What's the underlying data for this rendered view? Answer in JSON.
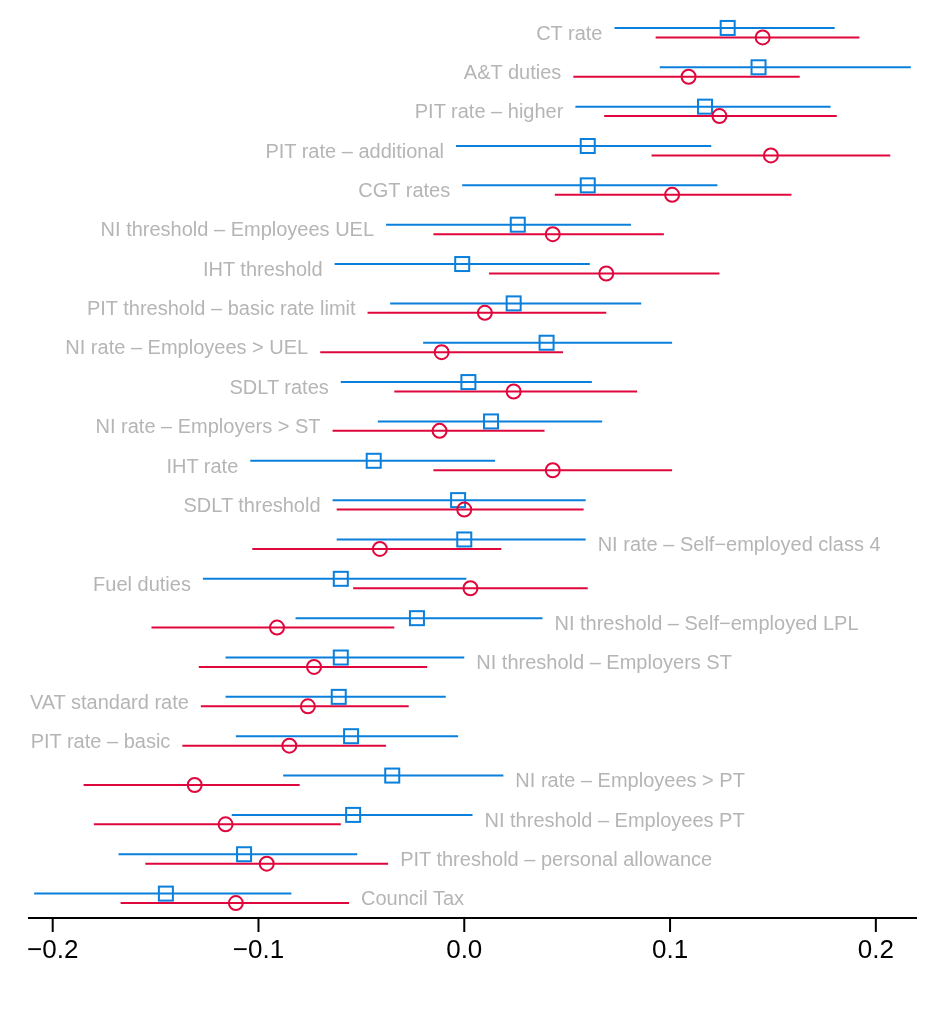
{
  "chart_data": {
    "type": "scatter",
    "orientation": "horizontal",
    "categories": [
      "CT rate",
      "A&T duties",
      "PIT rate – higher",
      "PIT rate – additional",
      "CGT rates",
      "NI threshold – Employees UEL",
      "IHT threshold",
      "PIT threshold – basic rate limit",
      "NI rate – Employees > UEL",
      "SDLT rates",
      "NI rate – Employers > ST",
      "IHT rate",
      "SDLT threshold",
      "NI rate – Self−employed class 4",
      "Fuel duties",
      "NI threshold – Self−employed LPL",
      "NI threshold – Employers ST",
      "VAT standard rate",
      "PIT rate – basic",
      "NI rate – Employees > PT",
      "NI threshold – Employees PT",
      "PIT threshold – personal allowance",
      "Council Tax"
    ],
    "series": [
      {
        "color": "#0a7fdb",
        "marker": "square",
        "values": [
          0.128,
          0.143,
          0.117,
          0.06,
          0.06,
          0.026,
          -0.001,
          0.024,
          0.04,
          0.002,
          0.013,
          -0.044,
          -0.003,
          0.0,
          -0.06,
          -0.023,
          -0.06,
          -0.061,
          -0.055,
          -0.035,
          -0.054,
          -0.107,
          -0.145
        ],
        "errors": [
          [
            0.073,
            0.18
          ],
          [
            0.095,
            0.217
          ],
          [
            0.054,
            0.178
          ],
          [
            -0.004,
            0.12
          ],
          [
            -0.001,
            0.123
          ],
          [
            -0.038,
            0.081
          ],
          [
            -0.063,
            0.061
          ],
          [
            -0.036,
            0.086
          ],
          [
            -0.02,
            0.101
          ],
          [
            -0.06,
            0.062
          ],
          [
            -0.042,
            0.067
          ],
          [
            -0.104,
            0.015
          ],
          [
            -0.064,
            0.059
          ],
          [
            -0.062,
            0.059
          ],
          [
            -0.127,
            0.001
          ],
          [
            -0.082,
            0.038
          ],
          [
            -0.116,
            0.0
          ],
          [
            -0.116,
            -0.009
          ],
          [
            -0.111,
            -0.003
          ],
          [
            -0.088,
            0.019
          ],
          [
            -0.113,
            0.004
          ],
          [
            -0.168,
            -0.052
          ],
          [
            -0.209,
            -0.084
          ]
        ]
      },
      {
        "color": "#e0073c",
        "marker": "circle",
        "values": [
          0.145,
          0.109,
          0.124,
          0.149,
          0.101,
          0.043,
          0.069,
          0.01,
          -0.011,
          0.024,
          -0.012,
          0.043,
          0.0,
          -0.041,
          0.003,
          -0.091,
          -0.073,
          -0.076,
          -0.085,
          -0.131,
          -0.116,
          -0.096,
          -0.111
        ],
        "errors": [
          [
            0.093,
            0.192
          ],
          [
            0.053,
            0.163
          ],
          [
            0.068,
            0.181
          ],
          [
            0.091,
            0.207
          ],
          [
            0.044,
            0.159
          ],
          [
            -0.015,
            0.097
          ],
          [
            0.012,
            0.124
          ],
          [
            -0.047,
            0.069
          ],
          [
            -0.07,
            0.048
          ],
          [
            -0.034,
            0.084
          ],
          [
            -0.064,
            0.039
          ],
          [
            -0.015,
            0.101
          ],
          [
            -0.062,
            0.058
          ],
          [
            -0.103,
            0.018
          ],
          [
            -0.054,
            0.06
          ],
          [
            -0.152,
            -0.034
          ],
          [
            -0.129,
            -0.018
          ],
          [
            -0.128,
            -0.027
          ],
          [
            -0.137,
            -0.038
          ],
          [
            -0.185,
            -0.08
          ],
          [
            -0.18,
            -0.06
          ],
          [
            -0.155,
            -0.037
          ],
          [
            -0.167,
            -0.056
          ]
        ]
      }
    ],
    "xlim": [
      -0.212,
      0.22
    ],
    "xticks": [
      {
        "value": -0.2,
        "label": "−0.2"
      },
      {
        "value": -0.1,
        "label": "−0.1"
      },
      {
        "value": 0,
        "label": "0.0"
      },
      {
        "value": 0.1,
        "label": "0.1"
      },
      {
        "value": 0.2,
        "label": "0.2"
      }
    ],
    "tick_labels": "x",
    "grid": false,
    "legend": false
  }
}
